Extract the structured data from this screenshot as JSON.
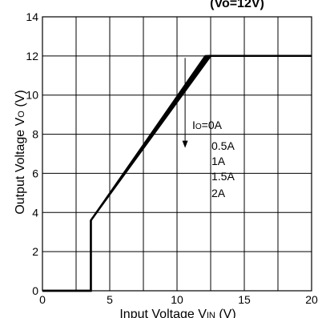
{
  "chart_data": {
    "type": "line",
    "title": "(Vo=12V)",
    "xlabel": "Input Voltage V",
    "xlabel_sub": "IN",
    "xlabel_unit": " (V)",
    "ylabel": "Output Voltage V",
    "ylabel_sub": "O",
    "ylabel_unit": " (V)",
    "xlim": [
      0,
      20
    ],
    "ylim": [
      0,
      14
    ],
    "x_ticks": [
      0,
      5,
      10,
      15,
      20
    ],
    "y_ticks": [
      0,
      2,
      4,
      6,
      8,
      10,
      12,
      14
    ],
    "x_tick_labels": [
      "0",
      "5",
      "10",
      "15",
      "20"
    ],
    "y_tick_labels": [
      "0",
      "2",
      "4",
      "6",
      "8",
      "10",
      "12",
      "14"
    ],
    "grid": true,
    "series": [
      {
        "name": "Io=0A",
        "x": [
          0,
          3.6,
          3.6,
          12.1,
          20
        ],
        "y": [
          0,
          0,
          3.6,
          12,
          12
        ]
      },
      {
        "name": "0.5A",
        "x": [
          0,
          3.6,
          3.6,
          12.2,
          20
        ],
        "y": [
          0,
          0,
          3.6,
          12,
          12
        ]
      },
      {
        "name": "1A",
        "x": [
          0,
          3.6,
          3.6,
          12.3,
          20
        ],
        "y": [
          0,
          0,
          3.6,
          12,
          12
        ]
      },
      {
        "name": "1.5A",
        "x": [
          0,
          3.6,
          3.6,
          12.4,
          20
        ],
        "y": [
          0,
          0,
          3.6,
          12,
          12
        ]
      },
      {
        "name": "2A",
        "x": [
          0,
          3.6,
          3.6,
          12.5,
          20
        ],
        "y": [
          0,
          0,
          3.6,
          12,
          12
        ]
      }
    ],
    "legend": {
      "entries": [
        {
          "prefix": "I",
          "sub": "O",
          "label": "=0A"
        },
        {
          "prefix": "",
          "sub": "",
          "label": "0.5A"
        },
        {
          "prefix": "",
          "sub": "",
          "label": "1A"
        },
        {
          "prefix": "",
          "sub": "",
          "label": "1.5A"
        },
        {
          "prefix": "",
          "sub": "",
          "label": "2A"
        }
      ],
      "arrow": {
        "x": 10.6,
        "y_from": 11.9,
        "y_to": 7.3
      }
    }
  }
}
